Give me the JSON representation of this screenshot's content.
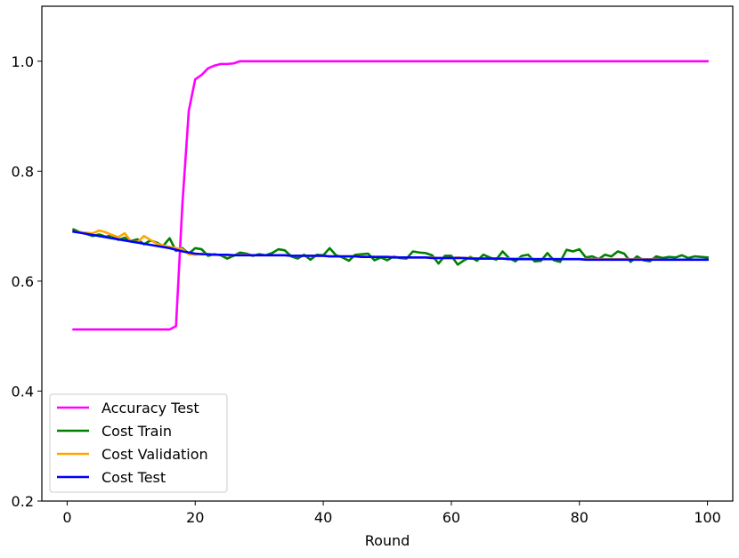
{
  "chart_data": {
    "type": "line",
    "title": "",
    "xlabel": "Round",
    "ylabel": "",
    "xlim": [
      -3.95,
      103.95
    ],
    "ylim": [
      0.2,
      1.1
    ],
    "xticks": [
      0,
      20,
      40,
      60,
      80,
      100
    ],
    "yticks": [
      0.2,
      0.4,
      0.6,
      0.8,
      1.0
    ],
    "xtick_labels": [
      "0",
      "20",
      "40",
      "60",
      "80",
      "100"
    ],
    "ytick_labels": [
      "0.2",
      "0.4",
      "0.6",
      "0.8",
      "1.0"
    ],
    "grid": false,
    "legend_position": "lower-left",
    "x": [
      1,
      2,
      3,
      4,
      5,
      6,
      7,
      8,
      9,
      10,
      11,
      12,
      13,
      14,
      15,
      16,
      17,
      18,
      19,
      20,
      21,
      22,
      23,
      24,
      25,
      26,
      27,
      28,
      29,
      30,
      31,
      32,
      33,
      34,
      35,
      36,
      37,
      38,
      39,
      40,
      41,
      42,
      43,
      44,
      45,
      46,
      47,
      48,
      49,
      50,
      51,
      52,
      53,
      54,
      55,
      56,
      57,
      58,
      59,
      60,
      61,
      62,
      63,
      64,
      65,
      66,
      67,
      68,
      69,
      70,
      71,
      72,
      73,
      74,
      75,
      76,
      77,
      78,
      79,
      80,
      81,
      82,
      83,
      84,
      85,
      86,
      87,
      88,
      89,
      90,
      91,
      92,
      93,
      94,
      95,
      96,
      97,
      98,
      99,
      100
    ],
    "series": [
      {
        "name": "Accuracy Test",
        "color": "#ff00ff",
        "values": [
          0.512,
          0.512,
          0.512,
          0.512,
          0.512,
          0.512,
          0.512,
          0.512,
          0.512,
          0.512,
          0.512,
          0.512,
          0.512,
          0.512,
          0.512,
          0.512,
          0.518,
          0.74,
          0.91,
          0.967,
          0.975,
          0.987,
          0.992,
          0.995,
          0.995,
          0.996,
          1.0,
          1.0,
          1.0,
          1.0,
          1.0,
          1.0,
          1.0,
          1.0,
          1.0,
          1.0,
          1.0,
          1.0,
          1.0,
          1.0,
          1.0,
          1.0,
          1.0,
          1.0,
          1.0,
          1.0,
          1.0,
          1.0,
          1.0,
          1.0,
          1.0,
          1.0,
          1.0,
          1.0,
          1.0,
          1.0,
          1.0,
          1.0,
          1.0,
          1.0,
          1.0,
          1.0,
          1.0,
          1.0,
          1.0,
          1.0,
          1.0,
          1.0,
          1.0,
          1.0,
          1.0,
          1.0,
          1.0,
          1.0,
          1.0,
          1.0,
          1.0,
          1.0,
          1.0,
          1.0,
          1.0,
          1.0,
          1.0,
          1.0,
          1.0,
          1.0,
          1.0,
          1.0,
          1.0,
          1.0,
          1.0,
          1.0,
          1.0,
          1.0,
          1.0,
          1.0,
          1.0,
          1.0,
          1.0,
          1.0
        ]
      },
      {
        "name": "Cost Train",
        "color": "#008000",
        "values": [
          0.694,
          0.689,
          0.686,
          0.682,
          0.685,
          0.681,
          0.683,
          0.675,
          0.679,
          0.673,
          0.676,
          0.667,
          0.674,
          0.67,
          0.664,
          0.678,
          0.655,
          0.66,
          0.65,
          0.66,
          0.658,
          0.646,
          0.649,
          0.647,
          0.641,
          0.646,
          0.652,
          0.65,
          0.646,
          0.649,
          0.647,
          0.651,
          0.658,
          0.656,
          0.645,
          0.641,
          0.648,
          0.639,
          0.648,
          0.647,
          0.66,
          0.647,
          0.643,
          0.637,
          0.648,
          0.649,
          0.65,
          0.638,
          0.643,
          0.638,
          0.645,
          0.642,
          0.641,
          0.654,
          0.652,
          0.651,
          0.647,
          0.632,
          0.646,
          0.646,
          0.63,
          0.638,
          0.644,
          0.637,
          0.648,
          0.643,
          0.639,
          0.654,
          0.642,
          0.636,
          0.646,
          0.648,
          0.636,
          0.637,
          0.651,
          0.638,
          0.635,
          0.657,
          0.654,
          0.658,
          0.643,
          0.645,
          0.64,
          0.648,
          0.645,
          0.654,
          0.65,
          0.635,
          0.645,
          0.638,
          0.636,
          0.645,
          0.642,
          0.644,
          0.643,
          0.647,
          0.642,
          0.645,
          0.644,
          0.643
        ]
      },
      {
        "name": "Cost Validation",
        "color": "#ffa500",
        "values": [
          0.69,
          0.689,
          0.688,
          0.687,
          0.692,
          0.689,
          0.684,
          0.68,
          0.687,
          0.672,
          0.671,
          0.682,
          0.675,
          0.668,
          0.665,
          0.662,
          0.66,
          0.658,
          0.649,
          0.648,
          0.65,
          0.649,
          0.648,
          0.648,
          0.647,
          0.647,
          0.648,
          0.648,
          0.647,
          0.647,
          0.647,
          0.647,
          0.647,
          0.647,
          0.646,
          0.646,
          0.646,
          0.646,
          0.646,
          0.646,
          0.645,
          0.645,
          0.645,
          0.645,
          0.645,
          0.645,
          0.644,
          0.644,
          0.644,
          0.644,
          0.644,
          0.643,
          0.643,
          0.643,
          0.643,
          0.643,
          0.643,
          0.642,
          0.642,
          0.642,
          0.643,
          0.642,
          0.642,
          0.641,
          0.641,
          0.641,
          0.641,
          0.641,
          0.641,
          0.641,
          0.641,
          0.641,
          0.64,
          0.64,
          0.64,
          0.64,
          0.64,
          0.64,
          0.64,
          0.64,
          0.64,
          0.64,
          0.64,
          0.64,
          0.64,
          0.64,
          0.64,
          0.64,
          0.64,
          0.64,
          0.64,
          0.64,
          0.639,
          0.639,
          0.639,
          0.639,
          0.639,
          0.639,
          0.639,
          0.639
        ]
      },
      {
        "name": "Cost Test",
        "color": "#0000ff",
        "values": [
          0.69,
          0.688,
          0.686,
          0.684,
          0.682,
          0.68,
          0.678,
          0.676,
          0.674,
          0.672,
          0.67,
          0.668,
          0.666,
          0.664,
          0.662,
          0.66,
          0.657,
          0.654,
          0.652,
          0.65,
          0.649,
          0.649,
          0.648,
          0.648,
          0.648,
          0.647,
          0.647,
          0.647,
          0.647,
          0.647,
          0.647,
          0.647,
          0.647,
          0.647,
          0.646,
          0.646,
          0.646,
          0.646,
          0.646,
          0.646,
          0.645,
          0.645,
          0.645,
          0.645,
          0.645,
          0.644,
          0.644,
          0.644,
          0.644,
          0.644,
          0.643,
          0.643,
          0.643,
          0.643,
          0.643,
          0.643,
          0.642,
          0.642,
          0.642,
          0.642,
          0.642,
          0.642,
          0.641,
          0.641,
          0.641,
          0.641,
          0.641,
          0.641,
          0.64,
          0.64,
          0.64,
          0.64,
          0.64,
          0.64,
          0.64,
          0.64,
          0.64,
          0.64,
          0.64,
          0.64,
          0.639,
          0.639,
          0.639,
          0.639,
          0.639,
          0.639,
          0.639,
          0.639,
          0.639,
          0.639,
          0.639,
          0.639,
          0.639,
          0.639,
          0.639,
          0.639,
          0.639,
          0.639,
          0.639,
          0.639
        ]
      }
    ]
  }
}
